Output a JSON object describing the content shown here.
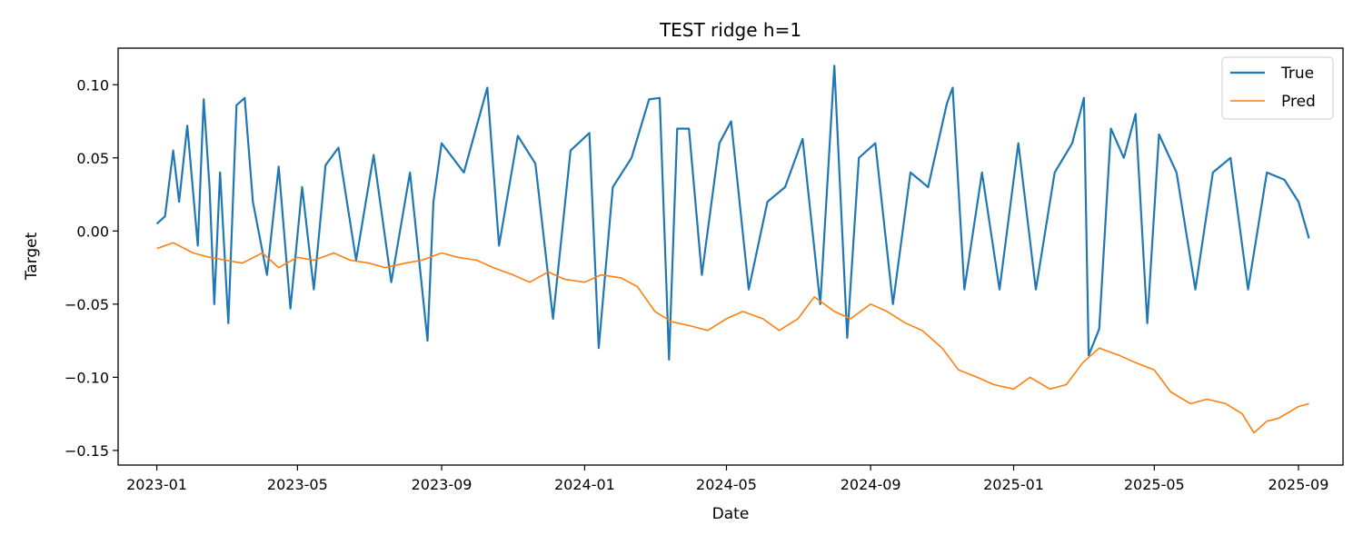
{
  "chart_data": {
    "type": "line",
    "title": "TEST ridge h=1",
    "xlabel": "Date",
    "ylabel": "Target",
    "x_range": [
      "2022-11-29",
      "2025-10-09"
    ],
    "ylim": [
      -0.16,
      0.125
    ],
    "grid": false,
    "legend_position": "upper right",
    "x_ticks": [
      "2023-01",
      "2023-05",
      "2023-09",
      "2024-01",
      "2024-05",
      "2024-09",
      "2025-01",
      "2025-05",
      "2025-09"
    ],
    "y_ticks": [
      0.1,
      0.05,
      0.0,
      -0.05,
      -0.1,
      -0.15
    ],
    "y_tick_labels": [
      "0.10",
      "0.05",
      "0.00",
      "−0.05",
      "−0.10",
      "−0.15"
    ],
    "series": [
      {
        "name": "True",
        "color": "#1f77b4",
        "x": [
          "2023-01-01",
          "2023-01-08",
          "2023-01-15",
          "2023-01-20",
          "2023-01-27",
          "2023-02-05",
          "2023-02-10",
          "2023-02-15",
          "2023-02-19",
          "2023-02-24",
          "2023-03-03",
          "2023-03-10",
          "2023-03-17",
          "2023-03-24",
          "2023-04-05",
          "2023-04-15",
          "2023-04-25",
          "2023-05-05",
          "2023-05-15",
          "2023-05-25",
          "2023-06-05",
          "2023-06-20",
          "2023-07-05",
          "2023-07-20",
          "2023-08-05",
          "2023-08-20",
          "2023-08-25",
          "2023-09-01",
          "2023-09-20",
          "2023-10-10",
          "2023-10-20",
          "2023-11-05",
          "2023-11-20",
          "2023-12-05",
          "2023-12-20",
          "2024-01-05",
          "2024-01-13",
          "2024-01-25",
          "2024-02-10",
          "2024-02-25",
          "2024-03-05",
          "2024-03-13",
          "2024-03-20",
          "2024-03-30",
          "2024-04-10",
          "2024-04-25",
          "2024-05-05",
          "2024-05-20",
          "2024-06-05",
          "2024-06-20",
          "2024-07-05",
          "2024-07-20",
          "2024-08-01",
          "2024-08-12",
          "2024-08-22",
          "2024-09-05",
          "2024-09-20",
          "2024-10-05",
          "2024-10-20",
          "2024-11-05",
          "2024-11-10",
          "2024-11-20",
          "2024-12-05",
          "2024-12-20",
          "2025-01-05",
          "2025-01-20",
          "2025-02-05",
          "2025-02-20",
          "2025-03-02",
          "2025-03-06",
          "2025-03-15",
          "2025-03-25",
          "2025-04-05",
          "2025-04-15",
          "2025-04-25",
          "2025-05-05",
          "2025-05-20",
          "2025-06-05",
          "2025-06-20",
          "2025-07-05",
          "2025-07-20",
          "2025-08-05",
          "2025-08-20",
          "2025-09-01",
          "2025-09-10"
        ],
        "values": [
          0.005,
          0.01,
          0.055,
          0.02,
          0.072,
          -0.01,
          0.09,
          0.03,
          -0.05,
          0.04,
          -0.063,
          0.086,
          0.091,
          0.02,
          -0.03,
          0.044,
          -0.053,
          0.03,
          -0.04,
          0.045,
          0.057,
          -0.02,
          0.052,
          -0.035,
          0.04,
          -0.075,
          0.02,
          0.06,
          0.04,
          0.098,
          -0.01,
          0.065,
          0.046,
          -0.06,
          0.055,
          0.067,
          -0.08,
          0.03,
          0.05,
          0.09,
          0.091,
          -0.088,
          0.07,
          0.07,
          -0.03,
          0.06,
          0.075,
          -0.04,
          0.02,
          0.03,
          0.063,
          -0.05,
          0.113,
          -0.073,
          0.05,
          0.06,
          -0.05,
          0.04,
          0.03,
          0.087,
          0.098,
          -0.04,
          0.04,
          -0.04,
          0.06,
          -0.04,
          0.04,
          0.06,
          0.091,
          -0.085,
          -0.067,
          0.07,
          0.05,
          0.08,
          -0.063,
          0.066,
          0.04,
          -0.04,
          0.04,
          0.05,
          -0.04,
          0.04,
          0.035,
          0.02,
          -0.005
        ]
      },
      {
        "name": "Pred",
        "color": "#ff7f0e",
        "x": [
          "2023-01-01",
          "2023-01-15",
          "2023-02-01",
          "2023-02-15",
          "2023-03-01",
          "2023-03-15",
          "2023-04-01",
          "2023-04-15",
          "2023-05-01",
          "2023-05-15",
          "2023-06-01",
          "2023-06-15",
          "2023-07-01",
          "2023-07-15",
          "2023-08-01",
          "2023-08-15",
          "2023-09-01",
          "2023-09-15",
          "2023-10-01",
          "2023-10-15",
          "2023-11-01",
          "2023-11-15",
          "2023-12-01",
          "2023-12-15",
          "2024-01-01",
          "2024-01-15",
          "2024-02-01",
          "2024-02-15",
          "2024-03-01",
          "2024-03-15",
          "2024-04-01",
          "2024-04-15",
          "2024-05-01",
          "2024-05-15",
          "2024-06-01",
          "2024-06-15",
          "2024-07-01",
          "2024-07-15",
          "2024-08-01",
          "2024-08-15",
          "2024-09-01",
          "2024-09-15",
          "2024-10-01",
          "2024-10-15",
          "2024-11-01",
          "2024-11-15",
          "2024-12-01",
          "2024-12-15",
          "2025-01-01",
          "2025-01-15",
          "2025-02-01",
          "2025-02-15",
          "2025-03-01",
          "2025-03-15",
          "2025-04-01",
          "2025-04-15",
          "2025-05-01",
          "2025-05-15",
          "2025-06-01",
          "2025-06-15",
          "2025-07-01",
          "2025-07-15",
          "2025-07-25",
          "2025-08-05",
          "2025-08-15",
          "2025-09-01",
          "2025-09-10"
        ],
        "values": [
          -0.012,
          -0.008,
          -0.015,
          -0.018,
          -0.02,
          -0.022,
          -0.015,
          -0.025,
          -0.018,
          -0.02,
          -0.015,
          -0.02,
          -0.022,
          -0.025,
          -0.022,
          -0.02,
          -0.015,
          -0.018,
          -0.02,
          -0.025,
          -0.03,
          -0.035,
          -0.028,
          -0.033,
          -0.035,
          -0.03,
          -0.032,
          -0.038,
          -0.055,
          -0.062,
          -0.065,
          -0.068,
          -0.06,
          -0.055,
          -0.06,
          -0.068,
          -0.06,
          -0.045,
          -0.055,
          -0.06,
          -0.05,
          -0.055,
          -0.063,
          -0.068,
          -0.08,
          -0.095,
          -0.1,
          -0.105,
          -0.108,
          -0.1,
          -0.108,
          -0.105,
          -0.09,
          -0.08,
          -0.085,
          -0.09,
          -0.095,
          -0.11,
          -0.118,
          -0.115,
          -0.118,
          -0.125,
          -0.138,
          -0.13,
          -0.128,
          -0.12,
          -0.118
        ]
      }
    ]
  }
}
